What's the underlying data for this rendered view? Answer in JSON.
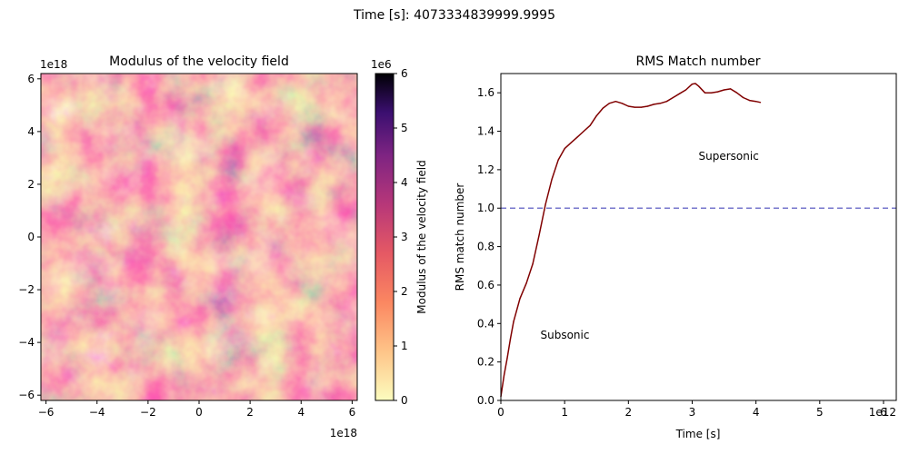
{
  "figure": {
    "suptitle": "Time [s]: 4073334839999.9995"
  },
  "chart_data": [
    {
      "type": "heatmap",
      "title": "Modulus of the velocity field",
      "xlim": [
        -6.2,
        6.2
      ],
      "ylim": [
        -6.2,
        6.2
      ],
      "x_ticks": [
        "-6",
        "-4",
        "-2",
        "0",
        "2",
        "4",
        "6"
      ],
      "y_ticks": [
        "-6",
        "-4",
        "-2",
        "0",
        "2",
        "4",
        "6"
      ],
      "x_offset": "1e18",
      "y_offset": "1e18",
      "colormap": "magma_r",
      "colorbar": {
        "label": "Modulus of the velocity field",
        "range": [
          0,
          6
        ],
        "ticks": [
          "0",
          "1",
          "2",
          "3",
          "4",
          "5",
          "6"
        ],
        "offset": "1e6"
      }
    },
    {
      "type": "line",
      "title": "RMS Match number",
      "xlabel": "Time [s]",
      "ylabel": "RMS match number",
      "xlim": [
        0,
        6.2
      ],
      "ylim": [
        0,
        1.7
      ],
      "x_ticks": [
        "0",
        "1",
        "2",
        "3",
        "4",
        "5",
        "6"
      ],
      "y_ticks": [
        "0.0",
        "0.2",
        "0.4",
        "0.6",
        "0.8",
        "1.0",
        "1.2",
        "1.4",
        "1.6"
      ],
      "x_offset": "1e12",
      "reference_line": {
        "y": 1.0,
        "style": "dashed",
        "color": "#7777cc"
      },
      "annotations": [
        {
          "text": "Supersonic",
          "x": 3.1,
          "y": 1.27
        },
        {
          "text": "Subsonic",
          "x": 0.62,
          "y": 0.34
        }
      ],
      "series": [
        {
          "color": "#800000",
          "x": [
            0,
            0.05,
            0.1,
            0.15,
            0.2,
            0.3,
            0.4,
            0.5,
            0.6,
            0.7,
            0.8,
            0.9,
            1.0,
            1.1,
            1.2,
            1.3,
            1.4,
            1.5,
            1.6,
            1.7,
            1.8,
            1.9,
            2.0,
            2.1,
            2.2,
            2.3,
            2.4,
            2.5,
            2.6,
            2.7,
            2.8,
            2.9,
            3.0,
            3.05,
            3.1,
            3.2,
            3.3,
            3.4,
            3.5,
            3.6,
            3.7,
            3.8,
            3.9,
            4.0,
            4.07
          ],
          "y": [
            0.02,
            0.13,
            0.22,
            0.32,
            0.41,
            0.53,
            0.61,
            0.71,
            0.86,
            1.02,
            1.15,
            1.25,
            1.31,
            1.34,
            1.37,
            1.4,
            1.43,
            1.48,
            1.52,
            1.545,
            1.555,
            1.545,
            1.53,
            1.525,
            1.525,
            1.53,
            1.54,
            1.545,
            1.555,
            1.575,
            1.595,
            1.615,
            1.645,
            1.648,
            1.635,
            1.6,
            1.6,
            1.605,
            1.615,
            1.62,
            1.6,
            1.575,
            1.56,
            1.555,
            1.55
          ]
        }
      ]
    }
  ]
}
